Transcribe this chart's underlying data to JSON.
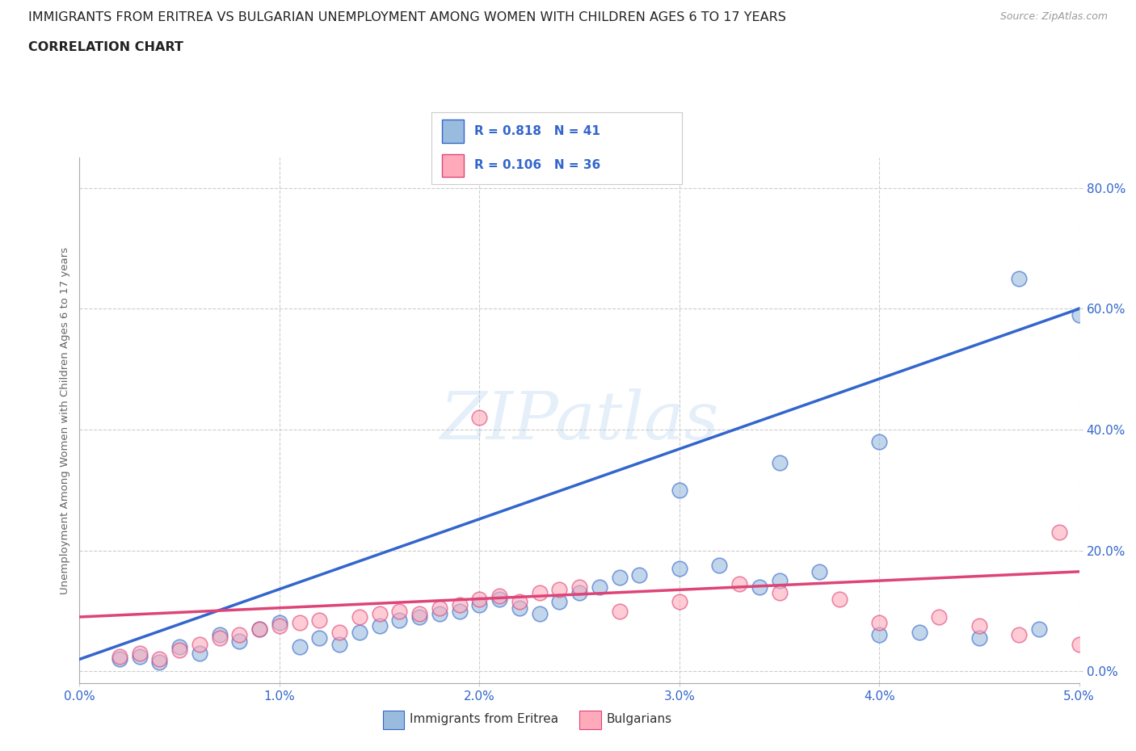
{
  "title": "IMMIGRANTS FROM ERITREA VS BULGARIAN UNEMPLOYMENT AMONG WOMEN WITH CHILDREN AGES 6 TO 17 YEARS",
  "subtitle": "CORRELATION CHART",
  "source": "Source: ZipAtlas.com",
  "xlabel_ticks": [
    "0.0%",
    "1.0%",
    "2.0%",
    "3.0%",
    "4.0%",
    "5.0%"
  ],
  "ylabel_ticks": [
    "0.0%",
    "20.0%",
    "40.0%",
    "60.0%",
    "80.0%"
  ],
  "ylabel_label": "Unemployment Among Women with Children Ages 6 to 17 years",
  "legend_r1": "R = 0.818",
  "legend_n1": "N = 41",
  "legend_r2": "R = 0.106",
  "legend_n2": "N = 36",
  "legend_label1": "Immigrants from Eritrea",
  "legend_label2": "Bulgarians",
  "blue_color": "#99BBDD",
  "pink_color": "#FFAABB",
  "blue_line_color": "#3366CC",
  "pink_line_color": "#DD4477",
  "blue_scatter": [
    [
      0.0002,
      0.02
    ],
    [
      0.0003,
      0.025
    ],
    [
      0.0004,
      0.015
    ],
    [
      0.0005,
      0.04
    ],
    [
      0.0006,
      0.03
    ],
    [
      0.0007,
      0.06
    ],
    [
      0.0008,
      0.05
    ],
    [
      0.0009,
      0.07
    ],
    [
      0.001,
      0.08
    ],
    [
      0.0011,
      0.04
    ],
    [
      0.0012,
      0.055
    ],
    [
      0.0013,
      0.045
    ],
    [
      0.0014,
      0.065
    ],
    [
      0.0015,
      0.075
    ],
    [
      0.0016,
      0.085
    ],
    [
      0.0017,
      0.09
    ],
    [
      0.0018,
      0.095
    ],
    [
      0.0019,
      0.1
    ],
    [
      0.002,
      0.11
    ],
    [
      0.0021,
      0.12
    ],
    [
      0.0022,
      0.105
    ],
    [
      0.0023,
      0.095
    ],
    [
      0.0024,
      0.115
    ],
    [
      0.0025,
      0.13
    ],
    [
      0.0026,
      0.14
    ],
    [
      0.0027,
      0.155
    ],
    [
      0.0028,
      0.16
    ],
    [
      0.003,
      0.17
    ],
    [
      0.0032,
      0.175
    ],
    [
      0.0034,
      0.14
    ],
    [
      0.0035,
      0.15
    ],
    [
      0.0037,
      0.165
    ],
    [
      0.004,
      0.06
    ],
    [
      0.0042,
      0.065
    ],
    [
      0.0045,
      0.055
    ],
    [
      0.0048,
      0.07
    ],
    [
      0.003,
      0.3
    ],
    [
      0.0035,
      0.345
    ],
    [
      0.004,
      0.38
    ],
    [
      0.0047,
      0.65
    ],
    [
      0.005,
      0.59
    ]
  ],
  "pink_scatter": [
    [
      0.0002,
      0.025
    ],
    [
      0.0003,
      0.03
    ],
    [
      0.0004,
      0.02
    ],
    [
      0.0005,
      0.035
    ],
    [
      0.0006,
      0.045
    ],
    [
      0.0007,
      0.055
    ],
    [
      0.0008,
      0.06
    ],
    [
      0.0009,
      0.07
    ],
    [
      0.001,
      0.075
    ],
    [
      0.0011,
      0.08
    ],
    [
      0.0012,
      0.085
    ],
    [
      0.0013,
      0.065
    ],
    [
      0.0014,
      0.09
    ],
    [
      0.0015,
      0.095
    ],
    [
      0.0016,
      0.1
    ],
    [
      0.0017,
      0.095
    ],
    [
      0.0018,
      0.105
    ],
    [
      0.0019,
      0.11
    ],
    [
      0.002,
      0.12
    ],
    [
      0.0021,
      0.125
    ],
    [
      0.0022,
      0.115
    ],
    [
      0.0023,
      0.13
    ],
    [
      0.0024,
      0.135
    ],
    [
      0.0025,
      0.14
    ],
    [
      0.0027,
      0.1
    ],
    [
      0.003,
      0.115
    ],
    [
      0.0033,
      0.145
    ],
    [
      0.002,
      0.42
    ],
    [
      0.0038,
      0.12
    ],
    [
      0.004,
      0.08
    ],
    [
      0.0043,
      0.09
    ],
    [
      0.0045,
      0.075
    ],
    [
      0.0047,
      0.06
    ],
    [
      0.0049,
      0.23
    ],
    [
      0.005,
      0.045
    ],
    [
      0.0035,
      0.13
    ]
  ],
  "blue_line": [
    [
      0.0,
      0.02
    ],
    [
      0.005,
      0.6
    ]
  ],
  "pink_line": [
    [
      0.0,
      0.09
    ],
    [
      0.005,
      0.165
    ]
  ],
  "watermark": "ZIPatlas",
  "bg_color": "#FFFFFF",
  "grid_color": "#CCCCCC",
  "xlim": [
    0.0,
    0.005
  ],
  "ylim": [
    -0.02,
    0.85
  ],
  "x_tick_vals": [
    0.0,
    0.001,
    0.002,
    0.003,
    0.004,
    0.005
  ],
  "y_tick_vals": [
    0.0,
    0.2,
    0.4,
    0.6,
    0.8
  ]
}
